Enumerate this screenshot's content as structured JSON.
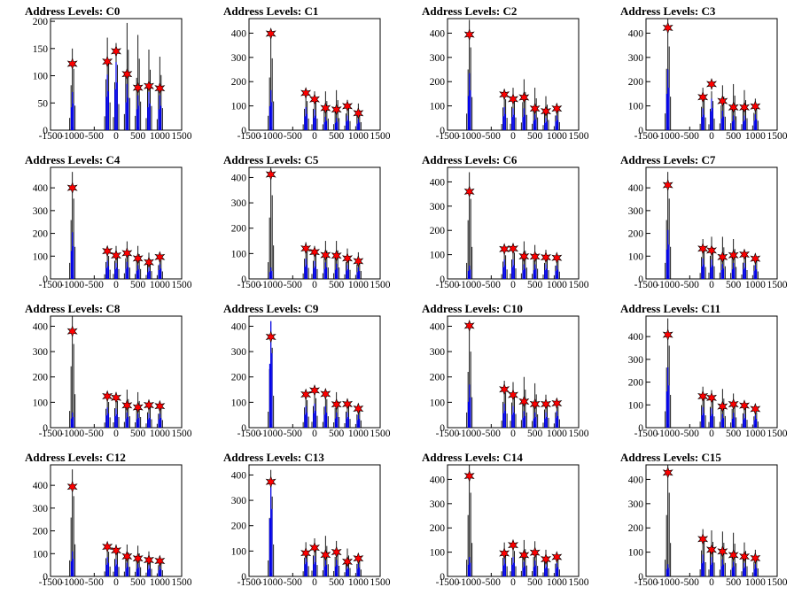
{
  "chart_data": [
    {
      "title": "Address Levels: C0",
      "type": "histogram",
      "xlim": [
        -1500,
        1500
      ],
      "ylim": [
        0,
        205
      ],
      "yticks": [
        0,
        50,
        100,
        150,
        200
      ],
      "xticks": [
        -1500,
        -1000,
        -500,
        0,
        500,
        1000,
        1500
      ],
      "peaks_x": [
        -1000,
        -200,
        0,
        250,
        500,
        750,
        1000
      ],
      "markers_y": [
        122,
        126,
        145,
        103,
        78,
        81,
        77
      ],
      "black_max": [
        150,
        170,
        160,
        197,
        175,
        148,
        135
      ],
      "blue_max": [
        70,
        102,
        125,
        85,
        64,
        70,
        64
      ]
    },
    {
      "title": "Address Levels: C1",
      "type": "histogram",
      "xlim": [
        -1500,
        1500
      ],
      "ylim": [
        0,
        460
      ],
      "yticks": [
        0,
        100,
        200,
        300,
        400
      ],
      "xticks": [
        -1500,
        -1000,
        -500,
        0,
        500,
        1000,
        1500
      ],
      "peaks_x": [
        -1000,
        -200,
        0,
        250,
        500,
        750,
        1000
      ],
      "markers_y": [
        398,
        153,
        127,
        91,
        85,
        99,
        70
      ],
      "black_max": [
        395,
        160,
        160,
        160,
        165,
        125,
        110
      ],
      "blue_max": [
        165,
        95,
        85,
        55,
        50,
        60,
        45
      ]
    },
    {
      "title": "Address Levels: C2",
      "type": "histogram",
      "xlim": [
        -1500,
        1500
      ],
      "ylim": [
        0,
        460
      ],
      "yticks": [
        0,
        100,
        200,
        300,
        400
      ],
      "xticks": [
        -1500,
        -1000,
        -500,
        0,
        500,
        1000,
        1500
      ],
      "peaks_x": [
        -1000,
        -200,
        0,
        250,
        500,
        750,
        1000
      ],
      "markers_y": [
        394,
        147,
        128,
        135,
        89,
        78,
        89
      ],
      "black_max": [
        455,
        170,
        175,
        210,
        175,
        140,
        110
      ],
      "blue_max": [
        235,
        95,
        90,
        90,
        65,
        50,
        60
      ]
    },
    {
      "title": "Address Levels: C3",
      "type": "histogram",
      "xlim": [
        -1500,
        1500
      ],
      "ylim": [
        0,
        460
      ],
      "yticks": [
        0,
        100,
        200,
        300,
        400
      ],
      "xticks": [
        -1500,
        -1000,
        -500,
        0,
        500,
        1000,
        1500
      ],
      "peaks_x": [
        -1000,
        -200,
        0,
        250,
        500,
        750,
        1000
      ],
      "markers_y": [
        422,
        136,
        190,
        120,
        94,
        94,
        98
      ],
      "black_max": [
        460,
        175,
        160,
        185,
        190,
        165,
        130
      ],
      "blue_max": [
        250,
        90,
        130,
        80,
        60,
        60,
        65
      ]
    },
    {
      "title": "Address Levels: C4",
      "type": "histogram",
      "xlim": [
        -1500,
        1500
      ],
      "ylim": [
        0,
        490
      ],
      "yticks": [
        0,
        100,
        200,
        300,
        400
      ],
      "xticks": [
        -1500,
        -1000,
        -500,
        0,
        500,
        1000,
        1500
      ],
      "peaks_x": [
        -1000,
        -200,
        0,
        250,
        500,
        750,
        1000
      ],
      "markers_y": [
        400,
        122,
        103,
        113,
        90,
        73,
        96
      ],
      "black_max": [
        470,
        135,
        145,
        165,
        145,
        115,
        110
      ],
      "blue_max": [
        205,
        80,
        70,
        75,
        60,
        50,
        65
      ]
    },
    {
      "title": "Address Levels: C5",
      "type": "histogram",
      "xlim": [
        -1500,
        1500
      ],
      "ylim": [
        0,
        440
      ],
      "yticks": [
        0,
        100,
        200,
        300,
        400
      ],
      "xticks": [
        -1500,
        -1000,
        -500,
        0,
        500,
        1000,
        1500
      ],
      "peaks_x": [
        -1000,
        -200,
        0,
        250,
        500,
        750,
        1000
      ],
      "markers_y": [
        412,
        120,
        106,
        94,
        92,
        81,
        70
      ],
      "black_max": [
        440,
        145,
        130,
        150,
        150,
        120,
        105
      ],
      "blue_max": [
        45,
        80,
        70,
        65,
        60,
        55,
        45
      ]
    },
    {
      "title": "Address Levels: C6",
      "type": "histogram",
      "xlim": [
        -1500,
        1500
      ],
      "ylim": [
        0,
        460
      ],
      "yticks": [
        0,
        100,
        200,
        300,
        400
      ],
      "xticks": [
        -1500,
        -1000,
        -500,
        0,
        500,
        1000,
        1500
      ],
      "peaks_x": [
        -1000,
        -200,
        0,
        250,
        500,
        750,
        1000
      ],
      "markers_y": [
        360,
        123,
        125,
        93,
        92,
        89,
        87
      ],
      "black_max": [
        440,
        130,
        145,
        155,
        140,
        120,
        100
      ],
      "blue_max": [
        55,
        80,
        80,
        60,
        60,
        60,
        55
      ]
    },
    {
      "title": "Address Levels: C7",
      "type": "histogram",
      "xlim": [
        -1500,
        1500
      ],
      "ylim": [
        0,
        490
      ],
      "yticks": [
        0,
        100,
        200,
        300,
        400
      ],
      "xticks": [
        -1500,
        -1000,
        -500,
        0,
        500,
        1000,
        1500
      ],
      "peaks_x": [
        -1000,
        -200,
        0,
        250,
        500,
        750,
        1000
      ],
      "markers_y": [
        412,
        133,
        125,
        96,
        104,
        107,
        89
      ],
      "black_max": [
        470,
        175,
        185,
        185,
        175,
        130,
        110
      ],
      "blue_max": [
        215,
        90,
        85,
        65,
        70,
        70,
        60
      ]
    },
    {
      "title": "Address Levels: C8",
      "type": "histogram",
      "xlim": [
        -1500,
        1500
      ],
      "ylim": [
        0,
        440
      ],
      "yticks": [
        0,
        100,
        200,
        300,
        400
      ],
      "xticks": [
        -1500,
        -1000,
        -500,
        0,
        500,
        1000,
        1500
      ],
      "peaks_x": [
        -1000,
        -200,
        0,
        250,
        500,
        750,
        1000
      ],
      "markers_y": [
        380,
        124,
        118,
        88,
        80,
        89,
        85
      ],
      "black_max": [
        440,
        135,
        140,
        150,
        140,
        110,
        100
      ],
      "blue_max": [
        60,
        80,
        75,
        60,
        55,
        55,
        55
      ]
    },
    {
      "title": "Address Levels: C9",
      "type": "histogram",
      "xlim": [
        -1500,
        1500
      ],
      "ylim": [
        0,
        440
      ],
      "yticks": [
        0,
        100,
        200,
        300,
        400
      ],
      "xticks": [
        -1500,
        -1000,
        -500,
        0,
        500,
        1000,
        1500
      ],
      "peaks_x": [
        -1000,
        -200,
        0,
        250,
        500,
        750,
        1000
      ],
      "markers_y": [
        358,
        131,
        147,
        133,
        92,
        93,
        75
      ],
      "black_max": [
        420,
        145,
        155,
        150,
        140,
        115,
        95
      ],
      "blue_max": [
        420,
        85,
        95,
        85,
        60,
        60,
        50
      ]
    },
    {
      "title": "Address Levels: C10",
      "type": "histogram",
      "xlim": [
        -1500,
        1500
      ],
      "ylim": [
        0,
        440
      ],
      "yticks": [
        0,
        100,
        200,
        300,
        400
      ],
      "xticks": [
        -1500,
        -1000,
        -500,
        0,
        500,
        1000,
        1500
      ],
      "peaks_x": [
        -1000,
        -200,
        0,
        250,
        500,
        750,
        1000
      ],
      "markers_y": [
        402,
        151,
        129,
        103,
        93,
        93,
        96
      ],
      "black_max": [
        400,
        185,
        180,
        200,
        175,
        130,
        110
      ],
      "blue_max": [
        170,
        95,
        85,
        65,
        60,
        60,
        65
      ]
    },
    {
      "title": "Address Levels: C11",
      "type": "histogram",
      "xlim": [
        -1500,
        1500
      ],
      "ylim": [
        0,
        490
      ],
      "yticks": [
        0,
        100,
        200,
        300,
        400
      ],
      "xticks": [
        -1500,
        -1000,
        -500,
        0,
        500,
        1000,
        1500
      ],
      "peaks_x": [
        -1000,
        -200,
        0,
        250,
        500,
        750,
        1000
      ],
      "markers_y": [
        408,
        138,
        131,
        93,
        103,
        97,
        82
      ],
      "black_max": [
        480,
        180,
        165,
        170,
        150,
        115,
        90
      ],
      "blue_max": [
        265,
        90,
        85,
        60,
        65,
        60,
        55
      ]
    },
    {
      "title": "Address Levels: C12",
      "type": "histogram",
      "xlim": [
        -1500,
        1500
      ],
      "ylim": [
        0,
        490
      ],
      "yticks": [
        0,
        100,
        200,
        300,
        400
      ],
      "xticks": [
        -1500,
        -1000,
        -500,
        0,
        500,
        1000,
        1500
      ],
      "peaks_x": [
        -1000,
        -200,
        0,
        250,
        500,
        750,
        1000
      ],
      "markers_y": [
        394,
        130,
        114,
        88,
        79,
        72,
        68
      ],
      "black_max": [
        470,
        145,
        140,
        140,
        135,
        110,
        90
      ],
      "blue_max": [
        110,
        85,
        75,
        60,
        55,
        50,
        45
      ]
    },
    {
      "title": "Address Levels: C13",
      "type": "histogram",
      "xlim": [
        -1500,
        1500
      ],
      "ylim": [
        0,
        440
      ],
      "yticks": [
        0,
        100,
        200,
        300,
        400
      ],
      "xticks": [
        -1500,
        -1000,
        -500,
        0,
        500,
        1000,
        1500
      ],
      "peaks_x": [
        -1000,
        -200,
        0,
        250,
        500,
        750,
        1000
      ],
      "markers_y": [
        373,
        92,
        113,
        85,
        96,
        58,
        71
      ],
      "black_max": [
        420,
        135,
        150,
        160,
        140,
        110,
        90
      ],
      "blue_max": [
        380,
        80,
        80,
        65,
        65,
        45,
        50
      ]
    },
    {
      "title": "Address Levels: C14",
      "type": "histogram",
      "xlim": [
        -1500,
        1500
      ],
      "ylim": [
        0,
        460
      ],
      "yticks": [
        0,
        100,
        200,
        300,
        400
      ],
      "xticks": [
        -1500,
        -1000,
        -500,
        0,
        500,
        1000,
        1500
      ],
      "peaks_x": [
        -1000,
        -200,
        0,
        250,
        500,
        750,
        1000
      ],
      "markers_y": [
        414,
        95,
        129,
        88,
        98,
        71,
        80
      ],
      "black_max": [
        460,
        140,
        140,
        150,
        145,
        110,
        95
      ],
      "blue_max": [
        80,
        75,
        80,
        60,
        65,
        55,
        55
      ]
    },
    {
      "title": "Address Levels: C15",
      "type": "histogram",
      "xlim": [
        -1500,
        1500
      ],
      "ylim": [
        0,
        460
      ],
      "yticks": [
        0,
        100,
        200,
        300,
        400
      ],
      "xticks": [
        -1500,
        -1000,
        -500,
        0,
        500,
        1000,
        1500
      ],
      "peaks_x": [
        -1000,
        -200,
        0,
        250,
        500,
        750,
        1000
      ],
      "markers_y": [
        428,
        154,
        110,
        103,
        88,
        82,
        75
      ],
      "black_max": [
        460,
        195,
        190,
        185,
        180,
        140,
        110
      ],
      "blue_max": [
        50,
        90,
        80,
        70,
        60,
        55,
        50
      ]
    }
  ],
  "colors": {
    "black_hist": "#000000",
    "blue_hist": "#0000ee",
    "marker": "#ff0000",
    "marker_outline": "#000000"
  }
}
